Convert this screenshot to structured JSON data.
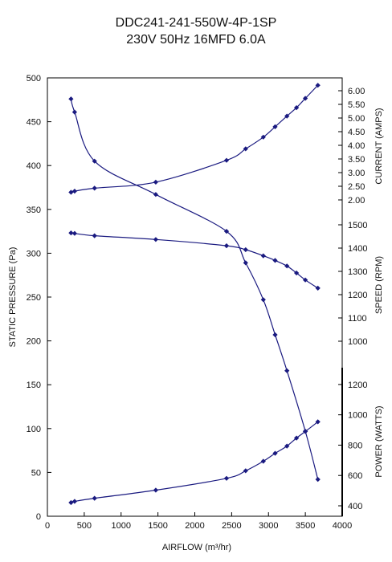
{
  "title": "DDC241-241-550W-4P-1SP",
  "subtitle": "230V 50Hz 16MFD 6.0A",
  "colors": {
    "series": "#1a1a80",
    "axis": "#000000",
    "text": "#111111"
  },
  "chart_data": {
    "type": "line",
    "xlabel": "AIRFLOW (m³/hr)",
    "xlim": [
      0,
      4000
    ],
    "xticks": [
      "0",
      "500",
      "1000",
      "1500",
      "2000",
      "2500",
      "3000",
      "3500",
      "4000"
    ],
    "left_axis": {
      "label": "STATIC PRESSURE (Pa)",
      "ylim": [
        0,
        500
      ],
      "ticks": [
        "0",
        "50",
        "100",
        "150",
        "200",
        "250",
        "300",
        "350",
        "400",
        "450",
        "500"
      ]
    },
    "current_axis": {
      "label": "CURRENT (AMPS)",
      "range": [
        2.0,
        6.0
      ],
      "ticks": [
        "2.00",
        "2.50",
        "3.00",
        "3.50",
        "4.00",
        "4.50",
        "5.00",
        "5.50",
        "6.00"
      ]
    },
    "speed_axis": {
      "label": "SPEED (RPM)",
      "range": [
        1000,
        1500
      ],
      "ticks": [
        "1000",
        "1100",
        "1200",
        "1300",
        "1400",
        "1500"
      ]
    },
    "power_axis": {
      "label": "POWER (WATTS)",
      "range": [
        400,
        1300
      ],
      "ticks": [
        "400",
        "600",
        "800",
        "1000",
        "1200"
      ]
    },
    "series": [
      {
        "axis": "left_axis",
        "x": [
          320,
          370,
          640,
          1470,
          2430,
          2690,
          2930,
          3090,
          3250,
          3500,
          3670
        ],
        "values": [
          476,
          461,
          405,
          367,
          325,
          289,
          247,
          207,
          166,
          97,
          42
        ]
      },
      {
        "axis": "current_axis",
        "x": [
          320,
          370,
          640,
          1470,
          2430,
          2690,
          2930,
          3090,
          3250,
          3380,
          3500,
          3670
        ],
        "values": [
          2.28,
          2.32,
          2.43,
          2.65,
          3.45,
          3.87,
          4.3,
          4.68,
          5.07,
          5.38,
          5.72,
          6.2
        ]
      },
      {
        "axis": "speed_axis",
        "x": [
          320,
          370,
          640,
          1470,
          2430,
          2690,
          2930,
          3090,
          3250,
          3380,
          3500,
          3670
        ],
        "values": [
          1465,
          1463,
          1453,
          1437,
          1410,
          1393,
          1367,
          1347,
          1323,
          1293,
          1263,
          1228
        ]
      },
      {
        "axis": "power_axis",
        "x": [
          320,
          370,
          640,
          1470,
          2430,
          2690,
          2930,
          3090,
          3250,
          3380,
          3500,
          3670
        ],
        "values": [
          421,
          429,
          450,
          503,
          581,
          631,
          694,
          746,
          794,
          847,
          890,
          954
        ]
      }
    ]
  }
}
